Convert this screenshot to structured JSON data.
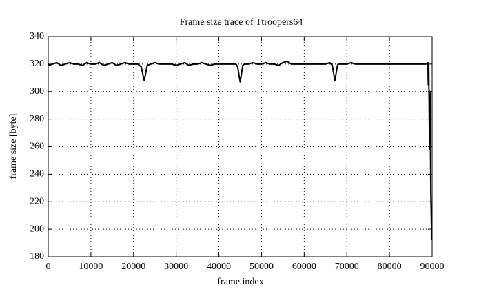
{
  "chart_data": {
    "type": "line",
    "title": "Frame size trace of Ttroopers64",
    "x_label": "frame index",
    "y_label": "frame size [byte]",
    "x": [
      0,
      1000,
      2000,
      3000,
      4000,
      5000,
      6000,
      7000,
      8000,
      9000,
      10000,
      11000,
      12000,
      13000,
      14000,
      15000,
      16000,
      17000,
      18000,
      19000,
      20000,
      21000,
      21800,
      22500,
      23200,
      24000,
      25000,
      26000,
      27000,
      28000,
      29000,
      30000,
      31000,
      32000,
      33000,
      34000,
      35000,
      36000,
      37000,
      38000,
      39000,
      40000,
      41000,
      42000,
      43000,
      44000,
      44400,
      45000,
      45600,
      46000,
      47000,
      48000,
      49000,
      50000,
      51000,
      52000,
      53000,
      54000,
      55000,
      56000,
      57000,
      58000,
      59000,
      60000,
      61000,
      62000,
      63000,
      64000,
      65000,
      66000,
      66600,
      67200,
      67800,
      68000,
      69000,
      70000,
      71000,
      72000,
      73000,
      74000,
      75000,
      76000,
      77000,
      78000,
      79000,
      80000,
      81000,
      82000,
      83000,
      84000,
      85000,
      86000,
      87000,
      88000,
      88500,
      89000,
      89100,
      89200,
      89400,
      89500,
      89700,
      89900
    ],
    "series": [
      {
        "name": "frame size",
        "color": "#000000",
        "values": [
          319,
          320,
          321,
          319,
          320,
          321,
          320,
          320,
          319,
          321,
          320,
          320,
          321,
          319,
          320,
          321,
          319,
          320,
          321,
          320,
          320,
          320,
          318,
          308,
          319,
          320,
          321,
          320,
          320,
          320,
          320,
          319,
          320,
          321,
          319,
          320,
          320,
          321,
          320,
          319,
          320,
          320,
          320,
          320,
          320,
          320,
          318,
          307,
          319,
          320,
          320,
          321,
          320,
          320,
          321,
          320,
          320,
          319,
          321,
          322,
          320,
          320,
          320,
          320,
          320,
          320,
          320,
          320,
          320,
          321,
          319,
          308,
          319,
          320,
          320,
          320,
          321,
          320,
          320,
          320,
          320,
          320,
          320,
          320,
          320,
          320,
          320,
          320,
          320,
          320,
          320,
          320,
          320,
          320,
          320,
          321,
          305,
          320,
          258,
          300,
          225,
          192
        ]
      }
    ],
    "xlim": [
      0,
      90000
    ],
    "ylim": [
      180,
      340
    ],
    "xticks": [
      0,
      10000,
      20000,
      30000,
      40000,
      50000,
      60000,
      70000,
      80000,
      90000
    ],
    "yticks": [
      180,
      200,
      220,
      240,
      260,
      280,
      300,
      320,
      340
    ],
    "grid": true
  }
}
